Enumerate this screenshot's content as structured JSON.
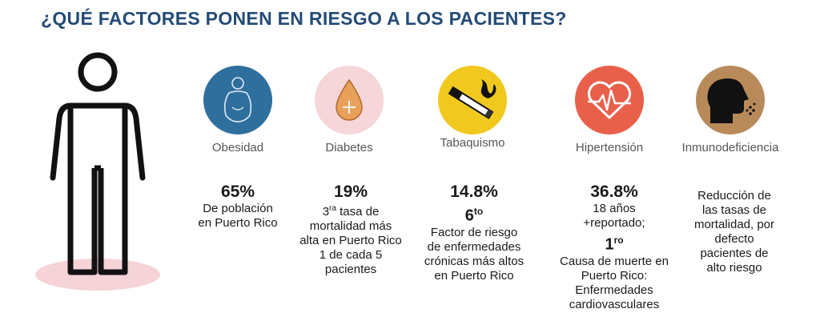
{
  "title": "¿QUÉ FACTORES PONEN EN RIESGO A LOS PACIENTES?",
  "colors": {
    "title": "#244b76",
    "obesidad": "#2f6f9e",
    "diabetes": "#f6d6d9",
    "tabaquismo": "#f0c81e",
    "hipertension": "#e8604a",
    "inmunodeficiencia": "#b88a5a",
    "shadow": "#f5d3d6"
  },
  "factors": [
    {
      "label": "Obesidad",
      "icon": "body-outline-icon"
    },
    {
      "label": "Diabetes",
      "icon": "blood-drop-icon"
    },
    {
      "label": "Tabaquismo",
      "icon": "cigarette-icon"
    },
    {
      "label": "Hipertensión",
      "icon": "heart-pulse-icon"
    },
    {
      "label": "Inmunodeficiencia",
      "icon": "sick-head-icon"
    }
  ],
  "stats": {
    "obesidad": {
      "value": "65%",
      "line1": "De población",
      "line2": "en Puerto Rico"
    },
    "diabetes": {
      "value": "19%",
      "rank_num": "3",
      "rank_sup": "ra",
      "line1": " tasa de",
      "line2": "mortalidad más",
      "line3": "alta en Puerto Rico",
      "line4": "1 de cada 5",
      "line5": "pacientes"
    },
    "tabaquismo": {
      "value": "14.8%",
      "rank_num": "6",
      "rank_sup": "to",
      "line1": "Factor de riesgo",
      "line2": "de enfermedades",
      "line3": "crónicas más altos",
      "line4": "en Puerto Rico"
    },
    "hipertension": {
      "value": "36.8%",
      "line1": "18 años",
      "line2": "+reportado;",
      "rank_num": "1",
      "rank_sup": "ro",
      "line3": "Causa de muerte en",
      "line4": "Puerto Rico:",
      "line5": "Enfermedades",
      "line6": "cardiovasculares"
    },
    "inmunodeficiencia": {
      "line1": "Reducción de",
      "line2": "las tasas de",
      "line3": "mortalidad, por",
      "line4": "defecto",
      "line5": "pacientes de",
      "line6": "alto riesgo"
    }
  }
}
